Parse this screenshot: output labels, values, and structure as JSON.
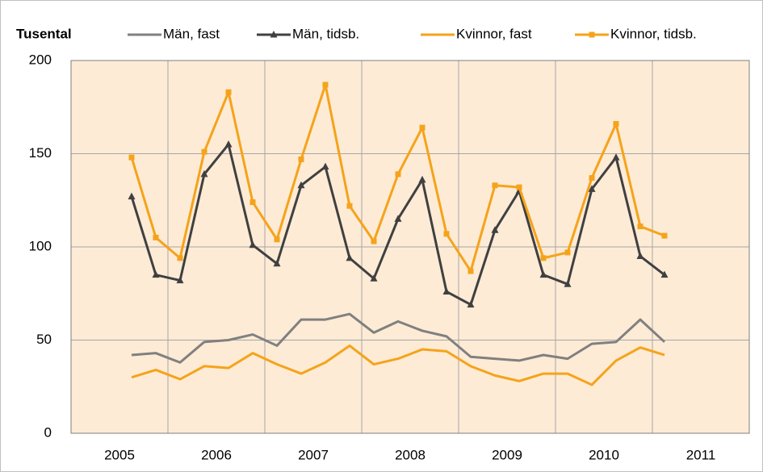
{
  "chart_data": {
    "type": "line",
    "y_label": "Tusental",
    "x": [
      2005.625,
      2005.875,
      2006.125,
      2006.375,
      2006.625,
      2006.875,
      2007.125,
      2007.375,
      2007.625,
      2007.875,
      2008.125,
      2008.375,
      2008.625,
      2008.875,
      2009.125,
      2009.375,
      2009.625,
      2009.875,
      2010.125,
      2010.375,
      2010.625,
      2010.875,
      2011.125
    ],
    "series": [
      {
        "name": "Män, fast",
        "color": "#808080",
        "marker": "none",
        "values": [
          42,
          43,
          38,
          49,
          50,
          53,
          47,
          61,
          61,
          64,
          54,
          60,
          55,
          52,
          41,
          40,
          39,
          42,
          40,
          48,
          49,
          61,
          49
        ]
      },
      {
        "name": "Män, tidsb.",
        "color": "#404040",
        "marker": "triangle",
        "values": [
          127,
          85,
          82,
          139,
          155,
          101,
          91,
          133,
          143,
          94,
          83,
          115,
          136,
          76,
          69,
          109,
          130,
          85,
          80,
          131,
          148,
          95,
          85
        ]
      },
      {
        "name": "Kvinnor, fast",
        "color": "#f5a31a",
        "marker": "none",
        "values": [
          30,
          34,
          29,
          36,
          35,
          43,
          37,
          32,
          38,
          47,
          37,
          40,
          45,
          44,
          36,
          31,
          28,
          32,
          32,
          26,
          39,
          46,
          42
        ]
      },
      {
        "name": "Kvinnor, tidsb.",
        "color": "#f5a31a",
        "marker": "square",
        "values": [
          148,
          105,
          94,
          151,
          183,
          124,
          104,
          147,
          187,
          122,
          103,
          139,
          164,
          107,
          87,
          133,
          132,
          94,
          97,
          137,
          166,
          111,
          106
        ]
      }
    ],
    "xlim": [
      2005,
      2012
    ],
    "xticks": [
      2005,
      2006,
      2007,
      2008,
      2009,
      2010,
      2011
    ],
    "ylim": [
      0,
      200
    ],
    "yticks": [
      0,
      50,
      100,
      150,
      200
    ],
    "grid": true,
    "plot_background": "#fdebd5"
  }
}
